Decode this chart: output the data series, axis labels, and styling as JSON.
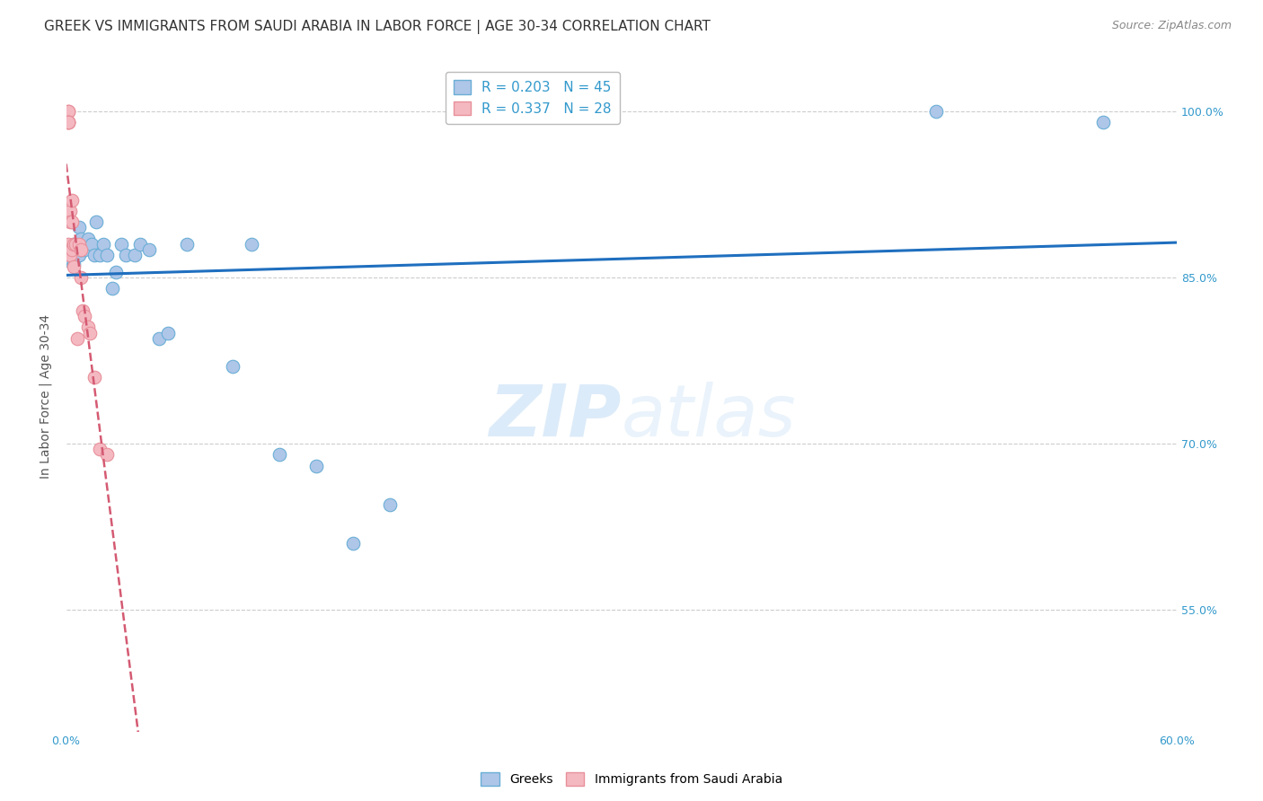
{
  "title": "GREEK VS IMMIGRANTS FROM SAUDI ARABIA IN LABOR FORCE | AGE 30-34 CORRELATION CHART",
  "source": "Source: ZipAtlas.com",
  "ylabel": "In Labor Force | Age 30-34",
  "xlim": [
    0.0,
    0.6
  ],
  "ylim": [
    0.44,
    1.045
  ],
  "xtick_positions": [
    0.0,
    0.1,
    0.2,
    0.3,
    0.4,
    0.5,
    0.6
  ],
  "xticklabels": [
    "0.0%",
    "",
    "",
    "",
    "",
    "",
    "60.0%"
  ],
  "ytick_positions": [
    0.55,
    0.7,
    0.85,
    1.0
  ],
  "yticklabels": [
    "55.0%",
    "70.0%",
    "85.0%",
    "100.0%"
  ],
  "watermark": "ZIPatlas",
  "greek_color": "#aec6e8",
  "greek_edge": "#6aaed6",
  "saudi_color": "#f4b8c1",
  "saudi_edge": "#e8909a",
  "line_blue": "#1f6fbf",
  "line_pink": "#d45a72",
  "grid_color": "#cccccc",
  "background_color": "#ffffff",
  "title_fontsize": 11,
  "axis_label_fontsize": 10,
  "tick_fontsize": 9,
  "legend_fontsize": 11,
  "source_fontsize": 9,
  "greek_points_x": [
    0.001,
    0.002,
    0.002,
    0.003,
    0.003,
    0.003,
    0.004,
    0.004,
    0.004,
    0.005,
    0.005,
    0.006,
    0.006,
    0.007,
    0.007,
    0.008,
    0.008,
    0.009,
    0.01,
    0.01,
    0.012,
    0.014,
    0.015,
    0.016,
    0.018,
    0.02,
    0.022,
    0.025,
    0.027,
    0.03,
    0.032,
    0.037,
    0.04,
    0.045,
    0.05,
    0.055,
    0.065,
    0.09,
    0.1,
    0.115,
    0.135,
    0.155,
    0.175,
    0.47,
    0.56
  ],
  "greek_points_y": [
    0.865,
    0.875,
    0.87,
    0.875,
    0.87,
    0.865,
    0.88,
    0.872,
    0.862,
    0.878,
    0.872,
    0.88,
    0.875,
    0.895,
    0.87,
    0.885,
    0.875,
    0.878,
    0.88,
    0.875,
    0.885,
    0.88,
    0.87,
    0.9,
    0.87,
    0.88,
    0.87,
    0.84,
    0.855,
    0.88,
    0.87,
    0.87,
    0.88,
    0.875,
    0.795,
    0.8,
    0.88,
    0.77,
    0.88,
    0.69,
    0.68,
    0.61,
    0.645,
    1.0,
    0.99
  ],
  "saudi_points_x": [
    0.001,
    0.001,
    0.001,
    0.001,
    0.001,
    0.001,
    0.001,
    0.002,
    0.002,
    0.002,
    0.002,
    0.003,
    0.003,
    0.003,
    0.004,
    0.004,
    0.005,
    0.006,
    0.007,
    0.008,
    0.008,
    0.009,
    0.01,
    0.012,
    0.013,
    0.015,
    0.018,
    0.022
  ],
  "saudi_points_y": [
    1.0,
    1.0,
    0.99,
    0.99,
    0.99,
    0.99,
    0.88,
    0.91,
    0.9,
    0.875,
    0.87,
    0.92,
    0.9,
    0.875,
    0.88,
    0.86,
    0.88,
    0.795,
    0.88,
    0.875,
    0.85,
    0.82,
    0.815,
    0.805,
    0.8,
    0.76,
    0.695,
    0.69
  ]
}
